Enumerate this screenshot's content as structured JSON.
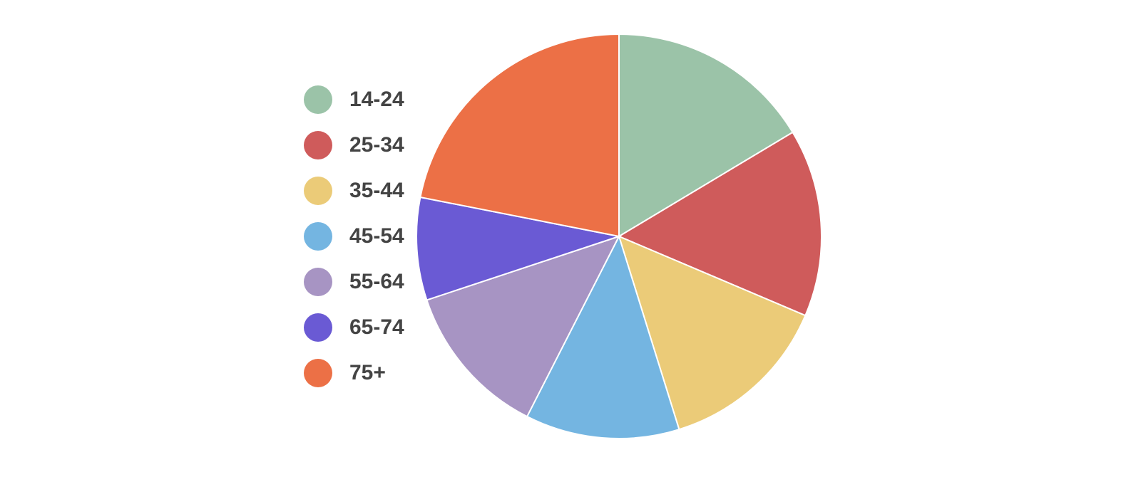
{
  "chart_data": {
    "type": "pie",
    "categories": [
      "14-24",
      "25-34",
      "35-44",
      "45-54",
      "55-64",
      "65-74",
      "75+"
    ],
    "values": [
      16.4,
      15.0,
      13.8,
      12.3,
      12.4,
      8.2,
      21.9
    ],
    "colors": [
      "#9bc3a8",
      "#cf5b5b",
      "#ebcb78",
      "#74b5e1",
      "#a794c3",
      "#6a5ad4",
      "#ec7046"
    ],
    "legend": "left"
  }
}
